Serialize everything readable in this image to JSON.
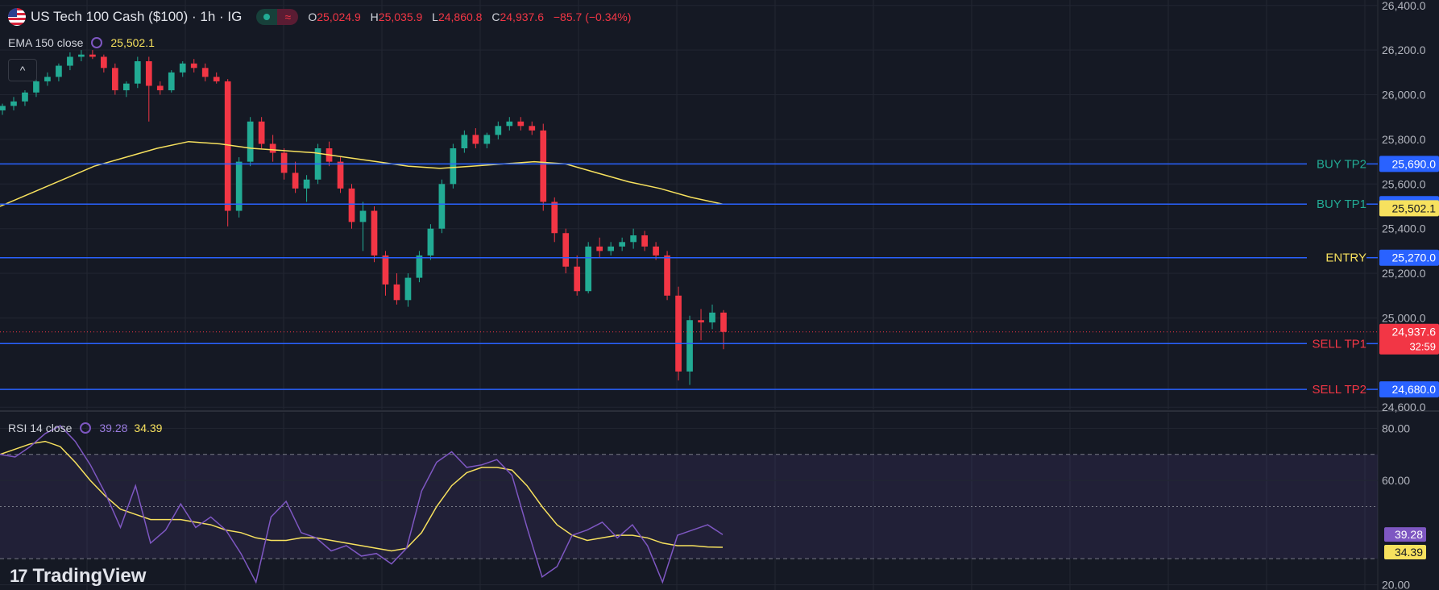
{
  "header": {
    "symbol_title": "US Tech 100 Cash ($100) · 1h · IG",
    "ohlc": [
      {
        "key": "O",
        "value": "25,024.9"
      },
      {
        "key": "H",
        "value": "25,035.9"
      },
      {
        "key": "L",
        "value": "24,860.8"
      },
      {
        "key": "C",
        "value": "24,937.6"
      }
    ],
    "change": "−85.7 (−0.34%)",
    "status_pill": "≈"
  },
  "ema_legend": {
    "label": "EMA 150 close",
    "value": "25,502.1"
  },
  "rsi_legend": {
    "label": "RSI 14 close",
    "rsi_value": "39.28",
    "ma_value": "34.39"
  },
  "collapse_button": "^",
  "brand": {
    "mark": "17",
    "name": "TradingView"
  },
  "colors": {
    "background": "#151924",
    "grid": "#222632",
    "up": "#22ab94",
    "down": "#f23645",
    "ema": "#f7e15e",
    "level_line": "#2962ff",
    "rsi": "#7e57c2",
    "rsi_ma": "#f7e15e"
  },
  "chart_data": [
    {
      "type": "candlestick",
      "title": "US Tech 100 Cash ($100) · 1h · IG",
      "y_axis_ticks": [
        "26,400.0",
        "26,200.0",
        "26,000.0",
        "25,800.0",
        "25,600.0",
        "25,400.0",
        "25,200.0",
        "25,000.0",
        "24,600.0"
      ],
      "ylim": [
        24590,
        26410
      ],
      "grid": true,
      "last_price": {
        "value": "24,937.6",
        "countdown": "32:59"
      },
      "ema_series": {
        "name": "EMA 150 close",
        "values": [
          25500,
          25560,
          25620,
          25680,
          25720,
          25760,
          25790,
          25780,
          25760,
          25750,
          25740,
          25720,
          25700,
          25680,
          25670,
          25680,
          25690,
          25700,
          25690,
          25650,
          25610,
          25580,
          25540,
          25510
        ]
      },
      "levels": [
        {
          "label": "BUY TP2",
          "value": "25,690.0",
          "price": 25690,
          "label_color": "#22ab94"
        },
        {
          "label": "BUY TP1",
          "value": "25,510.0",
          "price": 25510,
          "label_color": "#22ab94"
        },
        {
          "label": "ENTRY",
          "value": "25,270.0",
          "price": 25270,
          "label_color": "#f7e15e"
        },
        {
          "label": "SELL TP1",
          "value": "24,885.0",
          "price": 24885,
          "label_color": "#f23645"
        },
        {
          "label": "SELL TP2",
          "value": "24,680.0",
          "price": 24680,
          "label_color": "#f23645"
        }
      ],
      "ema_badge": "25,502.1",
      "candles": [
        [
          25930,
          25960,
          25910,
          25950
        ],
        [
          25950,
          25990,
          25930,
          25970
        ],
        [
          25970,
          26020,
          25950,
          26010
        ],
        [
          26010,
          26080,
          25990,
          26060
        ],
        [
          26060,
          26100,
          26040,
          26080
        ],
        [
          26080,
          26140,
          26060,
          26130
        ],
        [
          26130,
          26190,
          26110,
          26170
        ],
        [
          26170,
          26200,
          26150,
          26180
        ],
        [
          26180,
          26200,
          26160,
          26170
        ],
        [
          26170,
          26180,
          26100,
          26120
        ],
        [
          26120,
          26140,
          26000,
          26020
        ],
        [
          26020,
          26060,
          25990,
          26050
        ],
        [
          26050,
          26170,
          26030,
          26150
        ],
        [
          26150,
          26170,
          25880,
          26040
        ],
        [
          26040,
          26060,
          26000,
          26020
        ],
        [
          26020,
          26110,
          26010,
          26100
        ],
        [
          26100,
          26150,
          26080,
          26140
        ],
        [
          26140,
          26160,
          26100,
          26120
        ],
        [
          26120,
          26140,
          26060,
          26080
        ],
        [
          26080,
          26100,
          26050,
          26060
        ],
        [
          26060,
          26070,
          25410,
          25480
        ],
        [
          25480,
          25720,
          25450,
          25700
        ],
        [
          25700,
          25900,
          25680,
          25880
        ],
        [
          25880,
          25900,
          25760,
          25780
        ],
        [
          25780,
          25820,
          25700,
          25740
        ],
        [
          25740,
          25760,
          25620,
          25650
        ],
        [
          25650,
          25700,
          25560,
          25580
        ],
        [
          25580,
          25640,
          25520,
          25620
        ],
        [
          25620,
          25780,
          25600,
          25760
        ],
        [
          25760,
          25790,
          25680,
          25700
        ],
        [
          25700,
          25720,
          25560,
          25580
        ],
        [
          25580,
          25600,
          25400,
          25430
        ],
        [
          25430,
          25520,
          25300,
          25480
        ],
        [
          25480,
          25500,
          25250,
          25280
        ],
        [
          25280,
          25300,
          25100,
          25150
        ],
        [
          25150,
          25200,
          25060,
          25080
        ],
        [
          25080,
          25200,
          25050,
          25180
        ],
        [
          25180,
          25300,
          25160,
          25280
        ],
        [
          25280,
          25420,
          25260,
          25400
        ],
        [
          25400,
          25620,
          25380,
          25600
        ],
        [
          25600,
          25780,
          25580,
          25760
        ],
        [
          25760,
          25840,
          25740,
          25820
        ],
        [
          25820,
          25850,
          25760,
          25780
        ],
        [
          25780,
          25830,
          25760,
          25820
        ],
        [
          25820,
          25880,
          25800,
          25860
        ],
        [
          25860,
          25900,
          25840,
          25880
        ],
        [
          25880,
          25900,
          25840,
          25860
        ],
        [
          25860,
          25880,
          25820,
          25840
        ],
        [
          25840,
          25870,
          25480,
          25520
        ],
        [
          25520,
          25540,
          25340,
          25380
        ],
        [
          25380,
          25400,
          25200,
          25230
        ],
        [
          25230,
          25280,
          25100,
          25120
        ],
        [
          25120,
          25340,
          25110,
          25320
        ],
        [
          25320,
          25360,
          25270,
          25300
        ],
        [
          25300,
          25340,
          25280,
          25320
        ],
        [
          25320,
          25360,
          25300,
          25340
        ],
        [
          25340,
          25400,
          25310,
          25370
        ],
        [
          25370,
          25390,
          25300,
          25320
        ],
        [
          25320,
          25340,
          25260,
          25280
        ],
        [
          25280,
          25300,
          25080,
          25100
        ],
        [
          25100,
          25140,
          24720,
          24760
        ],
        [
          24760,
          25010,
          24700,
          24990
        ],
        [
          24990,
          25040,
          24900,
          24980
        ],
        [
          24980,
          25060,
          24950,
          25024
        ],
        [
          25024,
          25035,
          24860,
          24937.6
        ]
      ]
    },
    {
      "type": "line",
      "title": "RSI 14 close",
      "y_axis_ticks": [
        "80.00",
        "60.00",
        "20.00"
      ],
      "ylim": [
        18,
        86
      ],
      "bands": [
        70,
        50,
        30
      ],
      "grid": true,
      "series": [
        {
          "name": "RSI 14 close",
          "values": [
            70,
            69,
            73,
            78,
            81,
            75,
            66,
            55,
            42,
            58,
            36,
            41,
            51,
            42,
            46,
            41,
            32,
            21,
            46,
            52,
            40,
            38,
            33,
            35,
            31,
            32,
            28,
            34,
            56,
            67,
            71,
            65,
            66,
            68,
            62,
            42,
            23,
            27,
            39,
            41,
            44,
            38,
            43,
            35,
            21,
            39,
            41,
            43,
            39.28
          ]
        },
        {
          "name": "",
          "values": [
            70,
            72,
            74,
            75,
            73,
            67,
            60,
            54,
            49,
            47,
            45,
            45,
            45,
            44,
            43,
            41,
            40,
            38,
            37,
            37,
            38,
            38,
            37,
            36,
            35,
            34,
            33,
            34,
            40,
            50,
            58,
            63,
            65,
            65,
            64,
            58,
            50,
            43,
            39,
            37,
            38,
            39,
            39,
            38,
            36,
            35,
            35,
            34.5,
            34.39
          ]
        }
      ]
    }
  ]
}
